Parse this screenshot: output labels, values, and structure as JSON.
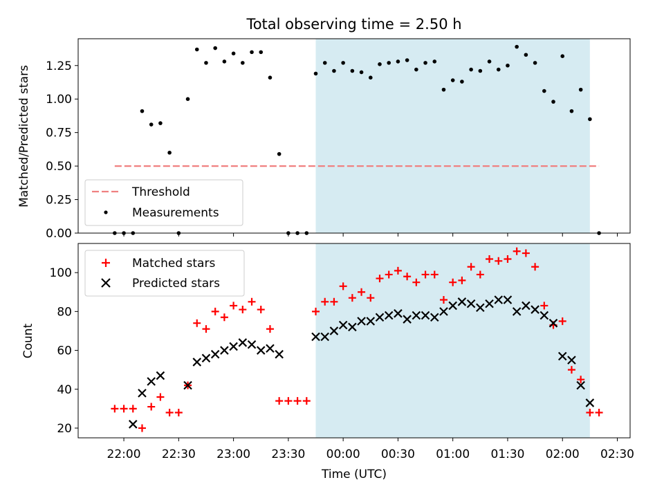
{
  "title": "Total observing time = 2.50 h",
  "chart_data": [
    {
      "type": "scatter",
      "panel": "top",
      "ylabel": "Matched/Predicted stars",
      "xlabel": "",
      "xlim": [
        "21:35",
        "02:37"
      ],
      "ylim": [
        0,
        1.45
      ],
      "yticks": [
        0.0,
        0.25,
        0.5,
        0.75,
        1.0,
        1.25
      ],
      "ytick_labels": [
        "0.00",
        "0.25",
        "0.50",
        "0.75",
        "1.00",
        "1.25"
      ],
      "shaded_interval": {
        "start": "23:45",
        "end": "02:15",
        "color": "#add8e6"
      },
      "threshold": {
        "value": 0.5,
        "from": "21:55",
        "to": "02:20",
        "color": "#f08080"
      },
      "legend": {
        "position": "lower-left",
        "entries": [
          {
            "label": "Threshold",
            "marker": "dashed-line",
            "color": "#f08080"
          },
          {
            "label": "Measurements",
            "marker": "dot",
            "color": "#000000"
          }
        ]
      },
      "series": [
        {
          "marker": "dot",
          "color": "#000000",
          "x": [
            "21:55",
            "22:00",
            "22:05",
            "22:10",
            "22:15",
            "22:20",
            "22:25",
            "22:30",
            "22:35",
            "22:40",
            "22:45",
            "22:50",
            "22:55",
            "23:00",
            "23:05",
            "23:10",
            "23:15",
            "23:20",
            "23:25",
            "23:30",
            "23:35",
            "23:40",
            "23:45",
            "23:50",
            "23:55",
            "00:00",
            "00:05",
            "00:10",
            "00:15",
            "00:20",
            "00:25",
            "00:30",
            "00:35",
            "00:40",
            "00:45",
            "00:50",
            "00:55",
            "01:00",
            "01:05",
            "01:10",
            "01:15",
            "01:20",
            "01:25",
            "01:30",
            "01:35",
            "01:40",
            "01:45",
            "01:50",
            "01:55",
            "02:00",
            "02:05",
            "02:10",
            "02:15",
            "02:20"
          ],
          "y": [
            0.0,
            0.0,
            0.0,
            0.91,
            0.81,
            0.82,
            0.6,
            0.0,
            1.0,
            1.37,
            1.27,
            1.38,
            1.28,
            1.34,
            1.27,
            1.35,
            1.35,
            1.16,
            0.59,
            0.0,
            0.0,
            0.0,
            1.19,
            1.27,
            1.21,
            1.27,
            1.21,
            1.2,
            1.16,
            1.26,
            1.27,
            1.28,
            1.29,
            1.22,
            1.27,
            1.28,
            1.07,
            1.14,
            1.13,
            1.22,
            1.21,
            1.28,
            1.22,
            1.25,
            1.39,
            1.33,
            1.27,
            1.06,
            0.98,
            1.32,
            0.91,
            1.07,
            0.85,
            0.0
          ]
        }
      ]
    },
    {
      "type": "scatter",
      "panel": "bottom",
      "ylabel": "Count",
      "xlabel": "Time (UTC)",
      "xlim": [
        "21:35",
        "02:37"
      ],
      "ylim": [
        15,
        115
      ],
      "yticks": [
        20,
        40,
        60,
        80,
        100
      ],
      "ytick_labels": [
        "20",
        "40",
        "60",
        "80",
        "100"
      ],
      "xticks": [
        "22:00",
        "22:30",
        "23:00",
        "23:30",
        "00:00",
        "00:30",
        "01:00",
        "01:30",
        "02:00",
        "02:30"
      ],
      "xtick_labels": [
        "22:00",
        "22:30",
        "23:00",
        "23:30",
        "00:00",
        "00:30",
        "01:00",
        "01:30",
        "02:00",
        "02:30"
      ],
      "shaded_interval": {
        "start": "23:45",
        "end": "02:15",
        "color": "#add8e6"
      },
      "legend": {
        "position": "top-left",
        "entries": [
          {
            "label": "Matched stars",
            "marker": "plus",
            "color": "#ff0000"
          },
          {
            "label": "Predicted stars",
            "marker": "x",
            "color": "#000000"
          }
        ]
      },
      "series": [
        {
          "name": "Matched stars",
          "marker": "plus",
          "color": "#ff0000",
          "x": [
            "21:55",
            "22:00",
            "22:05",
            "22:10",
            "22:15",
            "22:20",
            "22:25",
            "22:30",
            "22:35",
            "22:40",
            "22:45",
            "22:50",
            "22:55",
            "23:00",
            "23:05",
            "23:10",
            "23:15",
            "23:20",
            "23:25",
            "23:30",
            "23:35",
            "23:40",
            "23:45",
            "23:50",
            "23:55",
            "00:00",
            "00:05",
            "00:10",
            "00:15",
            "00:20",
            "00:25",
            "00:30",
            "00:35",
            "00:40",
            "00:45",
            "00:50",
            "00:55",
            "01:00",
            "01:05",
            "01:10",
            "01:15",
            "01:20",
            "01:25",
            "01:30",
            "01:35",
            "01:40",
            "01:45",
            "01:50",
            "01:55",
            "02:00",
            "02:05",
            "02:10",
            "02:15",
            "02:20"
          ],
          "y": [
            30,
            30,
            30,
            20,
            31,
            36,
            28,
            28,
            42,
            74,
            71,
            80,
            77,
            83,
            81,
            85,
            81,
            71,
            34,
            34,
            34,
            34,
            80,
            85,
            85,
            93,
            87,
            90,
            87,
            97,
            99,
            101,
            98,
            95,
            99,
            99,
            86,
            95,
            96,
            103,
            99,
            107,
            106,
            107,
            111,
            110,
            103,
            83,
            73,
            75,
            50,
            45,
            28,
            28
          ]
        },
        {
          "name": "Predicted stars",
          "marker": "x",
          "color": "#000000",
          "x": [
            "22:05",
            "22:10",
            "22:15",
            "22:20",
            "22:35",
            "22:40",
            "22:45",
            "22:50",
            "22:55",
            "23:00",
            "23:05",
            "23:10",
            "23:15",
            "23:20",
            "23:25",
            "23:45",
            "23:50",
            "23:55",
            "00:00",
            "00:05",
            "00:10",
            "00:15",
            "00:20",
            "00:25",
            "00:30",
            "00:35",
            "00:40",
            "00:45",
            "00:50",
            "00:55",
            "01:00",
            "01:05",
            "01:10",
            "01:15",
            "01:20",
            "01:25",
            "01:30",
            "01:35",
            "01:40",
            "01:45",
            "01:50",
            "01:55",
            "02:00",
            "02:05",
            "02:10",
            "02:15"
          ],
          "y": [
            22,
            38,
            44,
            47,
            42,
            54,
            56,
            58,
            60,
            62,
            64,
            63,
            60,
            61,
            58,
            67,
            67,
            70,
            73,
            72,
            75,
            75,
            77,
            78,
            79,
            76,
            78,
            78,
            77,
            80,
            83,
            85,
            84,
            82,
            84,
            86,
            86,
            80,
            83,
            81,
            78,
            74,
            57,
            55,
            42,
            33
          ]
        }
      ]
    }
  ]
}
